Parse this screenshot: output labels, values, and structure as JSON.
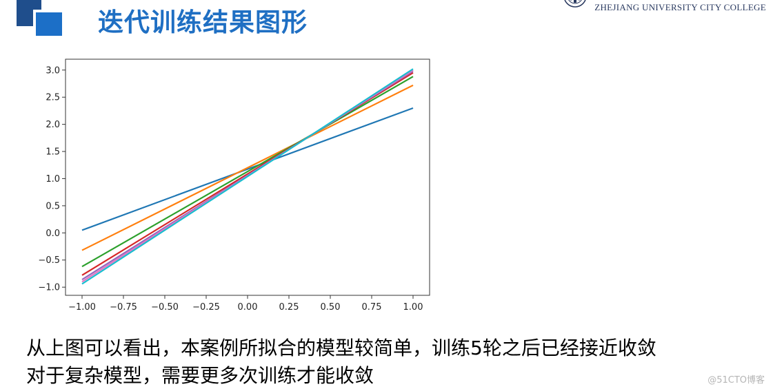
{
  "header": {
    "title": "迭代训练结果图形",
    "logo_text": "ZHEJIANG UNIVERSITY CITY COLLEGE",
    "colors": {
      "title": "#1f6fc3",
      "square_dark": "#1f4e8c",
      "square_light": "#1c6fc7"
    }
  },
  "chart_data": {
    "type": "line",
    "title": "",
    "xlabel": "",
    "ylabel": "",
    "xlim": [
      -1.1,
      1.1
    ],
    "ylim": [
      -1.15,
      3.2
    ],
    "xticks": [
      -1.0,
      -0.75,
      -0.5,
      -0.25,
      0.0,
      0.25,
      0.5,
      0.75,
      1.0
    ],
    "xtick_labels": [
      "−1.00",
      "−0.75",
      "−0.50",
      "−0.25",
      "0.00",
      "0.25",
      "0.50",
      "0.75",
      "1.00"
    ],
    "yticks": [
      -1.0,
      -0.5,
      0.0,
      0.5,
      1.0,
      1.5,
      2.0,
      2.5,
      3.0
    ],
    "ytick_labels": [
      "−1.0",
      "−0.5",
      "0.0",
      "0.5",
      "1.0",
      "1.5",
      "2.0",
      "2.5",
      "3.0"
    ],
    "grid": false,
    "legend": "none",
    "series": [
      {
        "color": "#1f77b4",
        "x": [
          -1.0,
          1.0
        ],
        "y": [
          0.05,
          2.3
        ]
      },
      {
        "color": "#ff7f0e",
        "x": [
          -1.0,
          1.0
        ],
        "y": [
          -0.32,
          2.72
        ]
      },
      {
        "color": "#2ca02c",
        "x": [
          -1.0,
          1.0
        ],
        "y": [
          -0.62,
          2.88
        ]
      },
      {
        "color": "#d62728",
        "x": [
          -1.0,
          1.0
        ],
        "y": [
          -0.78,
          2.95
        ]
      },
      {
        "color": "#9467bd",
        "x": [
          -1.0,
          1.0
        ],
        "y": [
          -0.86,
          2.98
        ]
      },
      {
        "color": "#e377c2",
        "x": [
          -1.0,
          1.0
        ],
        "y": [
          -0.9,
          3.0
        ]
      },
      {
        "color": "#17becf",
        "x": [
          -1.0,
          1.0
        ],
        "y": [
          -0.94,
          3.02
        ]
      }
    ]
  },
  "body": {
    "line1": "从上图可以看出，本案例所拟合的模型较简单，训练5轮之后已经接近收敛",
    "line2": "对于复杂模型，需要更多次训练才能收敛"
  },
  "watermark": "@51CTO博客"
}
